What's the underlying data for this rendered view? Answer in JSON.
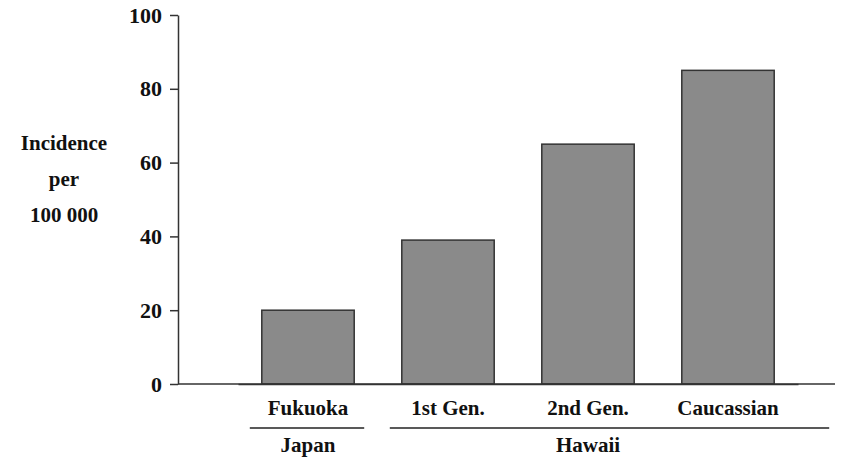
{
  "chart_data": {
    "type": "bar",
    "categories": [
      "Fukuoka",
      "1st Gen.",
      "2nd Gen.",
      "Caucassian"
    ],
    "values": [
      20,
      39,
      65,
      85
    ],
    "color": "#8a8a8a",
    "ylim": [
      0,
      100
    ],
    "yticks": [
      0,
      20,
      40,
      60,
      80,
      100
    ],
    "ylabel": [
      "Incidence",
      "per",
      "100 000"
    ],
    "groups": [
      {
        "label": "Japan",
        "count": 1
      },
      {
        "label": "Hawaii",
        "count": 3
      }
    ],
    "grid": false
  }
}
